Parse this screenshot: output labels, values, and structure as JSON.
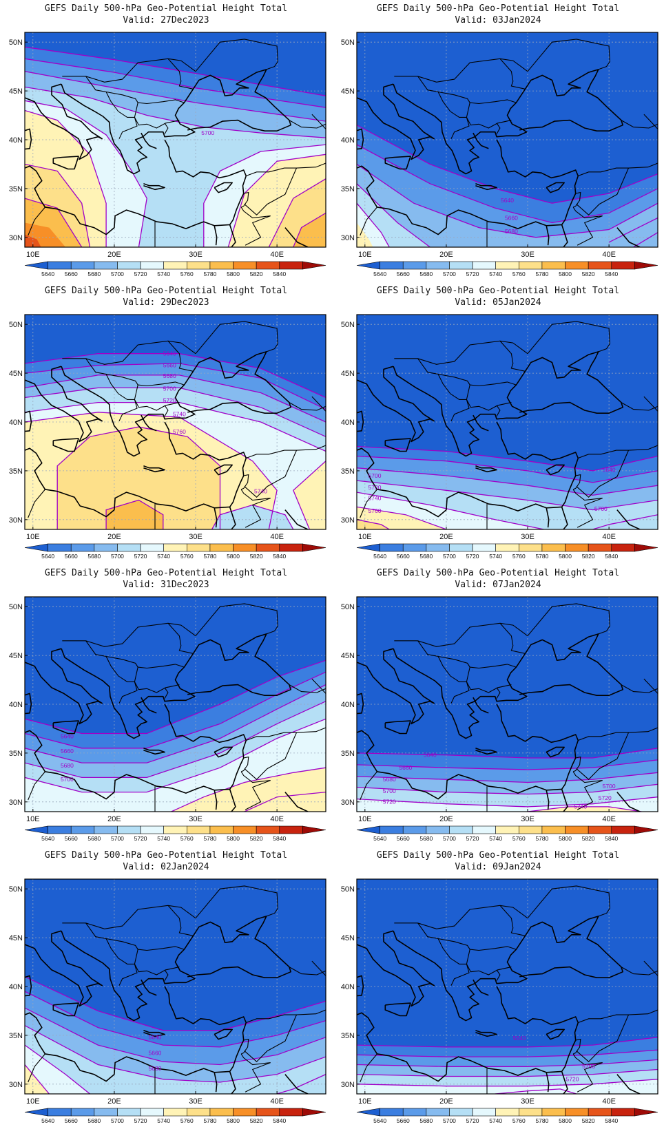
{
  "map_bounds": {
    "lon_min": 9,
    "lon_max": 46,
    "lat_min": 29,
    "lat_max": 51
  },
  "lat_ticks": [
    "50N",
    "45N",
    "40N",
    "35N",
    "30N"
  ],
  "lon_ticks": [
    "10E",
    "20E",
    "30E",
    "40E"
  ],
  "colorbar": {
    "labels": [
      "5640",
      "5660",
      "5680",
      "5700",
      "5720",
      "5740",
      "5760",
      "5780",
      "5800",
      "5820",
      "5840"
    ],
    "colors": [
      "#1d5fd1",
      "#3b7ee0",
      "#5b9be9",
      "#86bbef",
      "#b5dff5",
      "#e5f8fd",
      "#fff3b6",
      "#fde08a",
      "#fbbe4d",
      "#f78f27",
      "#e6541a",
      "#c8230e",
      "#9e0b07"
    ]
  },
  "contour_color": "#a000c8",
  "panels": [
    {
      "title": "GEFS Daily 500-hPa Geo-Potential Height Total",
      "valid": "Valid: 27Dec2023",
      "contour_labels": [
        "5700"
      ]
    },
    {
      "title": "GEFS Daily 500-hPa Geo-Potential Height Total",
      "valid": "Valid: 03Jan2024",
      "contour_labels": [
        "5640",
        "5660",
        "5680"
      ]
    },
    {
      "title": "GEFS Daily 500-hPa Geo-Potential Height Total",
      "valid": "Valid: 29Dec2023",
      "contour_labels": [
        "5640",
        "5660",
        "5680",
        "5700",
        "5720",
        "5740",
        "5760",
        "5740"
      ]
    },
    {
      "title": "GEFS Daily 500-hPa Geo-Potential Height Total",
      "valid": "Valid: 05Jan2024",
      "contour_labels": [
        "5640",
        "5700",
        "5720",
        "5740",
        "5760",
        "5700"
      ]
    },
    {
      "title": "GEFS Daily 500-hPa Geo-Potential Height Total",
      "valid": "Valid: 31Dec2023",
      "contour_labels": [
        "5640",
        "5660",
        "5680",
        "5700"
      ]
    },
    {
      "title": "GEFS Daily 500-hPa Geo-Potential Height Total",
      "valid": "Valid: 07Jan2024",
      "contour_labels": [
        "5640",
        "5660",
        "5680",
        "5700",
        "5720",
        "5700",
        "5720",
        "5740"
      ]
    },
    {
      "title": "GEFS Daily 500-hPa Geo-Potential Height Total",
      "valid": "Valid: 02Jan2024",
      "contour_labels": [
        "5640",
        "5660",
        "5680"
      ]
    },
    {
      "title": "GEFS Daily 500-hPa Geo-Potential Height Total",
      "valid": "Valid: 09Jan2024",
      "contour_labels": [
        "5640",
        "5700",
        "5720"
      ]
    }
  ]
}
